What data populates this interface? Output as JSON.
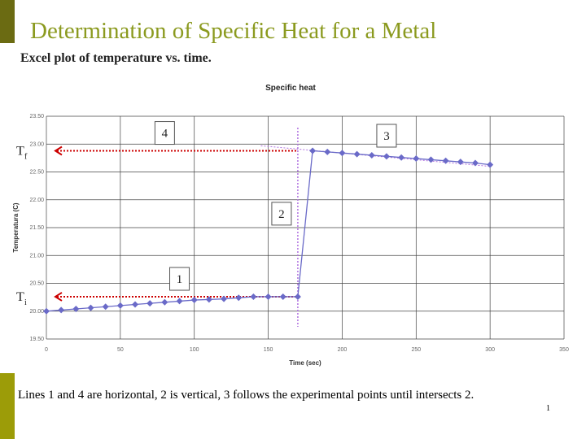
{
  "slide": {
    "title": "Determination of Specific Heat for a Metal",
    "subtitle": "Excel plot of temperature vs. time.",
    "caption": "Lines 1 and 4 are horizontal, 2 is vertical, 3 follows the experimental points until intersects 2.",
    "page_number": "1",
    "colors": {
      "title": "#8b9a1f",
      "bar_dark": "#6b6b12",
      "bar_light": "#9c9c08"
    }
  },
  "chart_data": {
    "type": "line",
    "title": "Specific heat",
    "xlabel": "Time (sec)",
    "ylabel": "Temperatura (C)",
    "xlim": [
      0,
      350
    ],
    "ylim": [
      19.5,
      23.5
    ],
    "xticks": [
      "0",
      "50",
      "100",
      "150",
      "200",
      "250",
      "300",
      "350"
    ],
    "yticks": [
      "19.50",
      "20.00",
      "20.50",
      "21.00",
      "21.50",
      "22.00",
      "22.50",
      "23.00",
      "23.50"
    ],
    "grid": true,
    "series_color": "#6a6ac8",
    "series": [
      {
        "x": [
          0,
          10,
          20,
          30,
          40,
          50,
          60,
          70,
          80,
          90,
          100,
          110,
          120,
          130,
          140,
          150,
          160,
          170,
          180,
          190,
          200,
          210,
          220,
          230,
          240,
          250,
          260,
          270,
          280,
          290,
          300
        ],
        "y": [
          20.0,
          20.02,
          20.04,
          20.06,
          20.08,
          20.1,
          20.12,
          20.14,
          20.16,
          20.18,
          20.2,
          20.21,
          20.22,
          20.24,
          20.26,
          20.26,
          20.26,
          20.26,
          22.88,
          22.86,
          22.84,
          22.82,
          22.8,
          22.78,
          22.76,
          22.74,
          22.72,
          22.7,
          22.68,
          22.66,
          22.63
        ]
      }
    ],
    "annotations": {
      "Tf": {
        "label": "T",
        "sub": "f",
        "value": 22.88
      },
      "Ti": {
        "label": "T",
        "sub": "i",
        "value": 20.26
      },
      "vertical_line_x": 170,
      "boxes": [
        {
          "label": "1",
          "x": 90,
          "y": 20.58
        },
        {
          "label": "2",
          "x": 159,
          "y": 21.75
        },
        {
          "label": "3",
          "x": 230,
          "y": 23.15
        },
        {
          "label": "4",
          "x": 80,
          "y": 23.2
        }
      ],
      "arrow_color": "#cc0000",
      "guide_color": "#b070e0"
    }
  }
}
